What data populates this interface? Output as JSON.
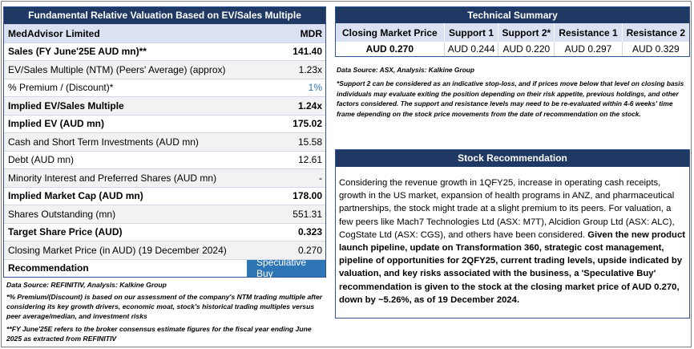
{
  "valuation": {
    "title": "Fundamental Relative Valuation Based on EV/Sales Multiple",
    "company": "MedAdvisor Limited",
    "ticker": "MDR",
    "rows": [
      {
        "label": "Sales (FY June'25E AUD mn)**",
        "value": "141.40"
      },
      {
        "label": "EV/Sales Multiple (NTM)  (Peers' Average) (approx)",
        "value": "1.23x"
      },
      {
        "label": "% Premium / (Discount)*",
        "value": "1%"
      },
      {
        "label": "Implied EV/Sales Multiple",
        "value": "1.24x"
      },
      {
        "label": "Implied EV (AUD mn)",
        "value": "175.02"
      },
      {
        "label": "Cash and Short Term Investments (AUD mn)",
        "value": "15.58"
      },
      {
        "label": "Debt (AUD mn)",
        "value": "12.61"
      },
      {
        "label": "Minority Interest and Preferred Shares (AUD mn)",
        "value": "-"
      },
      {
        "label": "Implied Market Cap (AUD mn)",
        "value": "178.00"
      },
      {
        "label": "Shares Outstanding (mn)",
        "value": "551.31"
      },
      {
        "label": "Target Share Price (AUD)",
        "value": "0.323"
      },
      {
        "label": "Closing Market Price (in AUD) (19 December 2024)",
        "value": "0.270"
      }
    ],
    "recommendation_label": "Recommendation",
    "recommendation_value": "Speculative Buy"
  },
  "left_notes": {
    "source": "Data Source: REFINITIV, Analysis: Kalkine Group",
    "note1": "*% Premium/(Discount) is based on our assessment of the company's NTM trading multiple after considering its key growth drivers, economic moat, stock's historical trading multiples versus peer average/median, and investment risks",
    "note2": "**FY June'25E refers to the broker consensus estimate figures for the fiscal year ending June 2025 as extracted from REFINITIV"
  },
  "technical": {
    "title": "Technical Summary",
    "headers": [
      "Closing Market Price",
      "Support 1",
      "Support 2*",
      "Resistance 1",
      "Resistance 2"
    ],
    "values": [
      "AUD 0.270",
      "AUD 0.244",
      "AUD 0.220",
      "AUD 0.297",
      "AUD 0.329"
    ],
    "source": "Data Source: ASX, Analysis: Kalkine Group",
    "note": "*Support 2 can be considered as an indicative stop-loss, and if prices move below that level on closing basis individuals may evaluate exiting the position depending on their risk appetite, previous holdings, and other factors considered. The support and resistance levels may need to be re-evaluated within 4-6 weeks' time frame depending on the stock price movements from the date of recommendation on the stock."
  },
  "stock_recommendation": {
    "title": "Stock Recommendation",
    "text_normal": "Considering the revenue growth in 1QFY25, increase in operating cash receipts, growth in the US market, expansion of health programs in ANZ, and pharmaceutical partnerships, the stock might trade at a slight premium to its peers. For valuation, a few peers like Mach7 Technologies Ltd (ASX: M7T), Alcidion Group Ltd (ASX: ALC), CogState Ltd (ASX: CGS), and others have been considered. ",
    "text_bold": "Given the new product launch pipeline, update on Transformation 360, strategic cost management, pipeline of opportunities for 2QFY25, current trading levels, upside indicated by valuation, and key risks associated with the business, a 'Speculative Buy' recommendation is given to the stock at the closing market price of AUD 0.270, down by ~5.26%, as of 19 December 2024."
  }
}
